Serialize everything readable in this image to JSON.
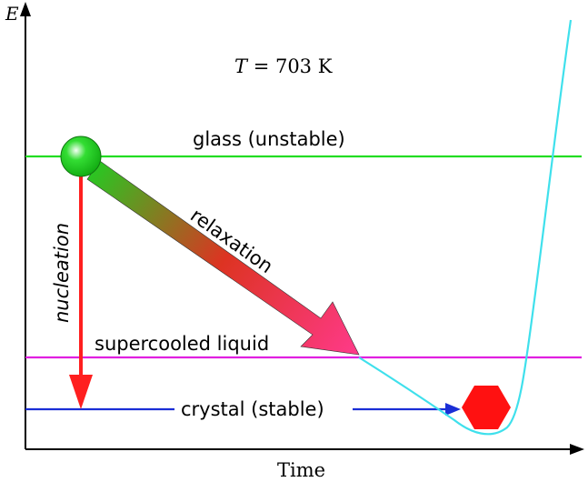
{
  "axes": {
    "y_label": "E",
    "x_label": "Time"
  },
  "temperature_label": {
    "T": "T",
    "rest": " = 703 K"
  },
  "levels": {
    "glass": {
      "label": "glass (unstable)",
      "color": "#22dd22"
    },
    "supercooled": {
      "label": "supercooled liquid",
      "color": "#e020e0"
    },
    "crystal": {
      "label": "crystal (stable)",
      "color": "#1a2ed6"
    }
  },
  "arrows": {
    "relaxation": {
      "label": "relaxation",
      "start_color": "#22cc22",
      "end_color": "#ff3a8a"
    },
    "nucleation": {
      "label": "nucleation",
      "color": "#ff1f1f"
    }
  },
  "curve": {
    "color": "#3fe0ec"
  },
  "markers": {
    "ball": {
      "color": "#33dd33",
      "icon": "green-sphere"
    },
    "crystal": {
      "color": "#ff1111",
      "icon": "red-hexagon"
    }
  }
}
